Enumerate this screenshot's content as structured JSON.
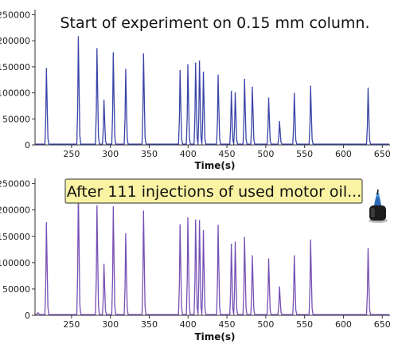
{
  "chart_data": [
    {
      "type": "line",
      "title": "",
      "annotation": "Start of experiment on 0.15 mm column.",
      "xlabel": "Time(s)",
      "ylabel": "",
      "xlim": [
        203,
        660
      ],
      "ylim": [
        0,
        260000
      ],
      "xticks": [
        "250",
        "300",
        "350",
        "400",
        "450",
        "500",
        "550",
        "600",
        "650"
      ],
      "yticks": [
        "0",
        "50000",
        "100000",
        "150000",
        "200000",
        "250000"
      ],
      "grid": false,
      "line_color": "#3a44a8",
      "peaks": [
        {
          "x": 218,
          "y": 147000
        },
        {
          "x": 259,
          "y": 208000
        },
        {
          "x": 283,
          "y": 185000
        },
        {
          "x": 292,
          "y": 86000
        },
        {
          "x": 304,
          "y": 177000
        },
        {
          "x": 320,
          "y": 145000
        },
        {
          "x": 343,
          "y": 175000
        },
        {
          "x": 390,
          "y": 143000
        },
        {
          "x": 400,
          "y": 154000
        },
        {
          "x": 410,
          "y": 157000
        },
        {
          "x": 415,
          "y": 161000
        },
        {
          "x": 420,
          "y": 140000
        },
        {
          "x": 439,
          "y": 134000
        },
        {
          "x": 456,
          "y": 103000
        },
        {
          "x": 461,
          "y": 100000
        },
        {
          "x": 473,
          "y": 126000
        },
        {
          "x": 483,
          "y": 111000
        },
        {
          "x": 504,
          "y": 90000
        },
        {
          "x": 518,
          "y": 45000
        },
        {
          "x": 537,
          "y": 99000
        },
        {
          "x": 558,
          "y": 113000
        },
        {
          "x": 632,
          "y": 109000
        }
      ]
    },
    {
      "type": "line",
      "title": "",
      "annotation": "After 111 injections of used motor oil...",
      "xlabel": "Time(s)",
      "ylabel": "",
      "xlim": [
        203,
        660
      ],
      "ylim": [
        0,
        260000
      ],
      "xticks": [
        "250",
        "300",
        "350",
        "400",
        "450",
        "500",
        "550",
        "600",
        "650"
      ],
      "yticks": [
        "0",
        "50000",
        "100000",
        "150000",
        "200000",
        "250000"
      ],
      "grid": false,
      "line_color": "#7650b4",
      "peaks": [
        {
          "x": 207,
          "y": 5000
        },
        {
          "x": 218,
          "y": 176000
        },
        {
          "x": 259,
          "y": 240000
        },
        {
          "x": 283,
          "y": 208000
        },
        {
          "x": 292,
          "y": 97000
        },
        {
          "x": 304,
          "y": 206000
        },
        {
          "x": 320,
          "y": 155000
        },
        {
          "x": 343,
          "y": 198000
        },
        {
          "x": 390,
          "y": 172000
        },
        {
          "x": 400,
          "y": 185000
        },
        {
          "x": 410,
          "y": 181000
        },
        {
          "x": 415,
          "y": 180000
        },
        {
          "x": 420,
          "y": 161000
        },
        {
          "x": 439,
          "y": 171000
        },
        {
          "x": 456,
          "y": 135000
        },
        {
          "x": 461,
          "y": 139000
        },
        {
          "x": 473,
          "y": 148000
        },
        {
          "x": 483,
          "y": 113000
        },
        {
          "x": 504,
          "y": 107000
        },
        {
          "x": 518,
          "y": 54000
        },
        {
          "x": 537,
          "y": 113000
        },
        {
          "x": 558,
          "y": 143000
        },
        {
          "x": 632,
          "y": 127000
        }
      ]
    }
  ],
  "colors": {
    "annotation_box_fill": "#f9f3a3",
    "annotation_box_border": "#555555",
    "axis": "#333333"
  },
  "icons": {
    "motor_oil": "oil-can-icon"
  }
}
